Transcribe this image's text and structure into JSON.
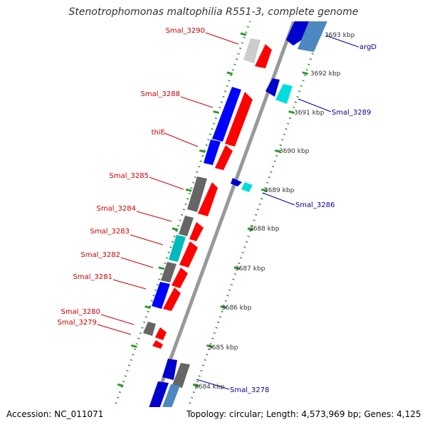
{
  "title": "Stenotrophomonas maltophilia R551-3, complete genome",
  "accession": "Accession: NC_011071",
  "summary": "Topology: circular; Length: 4,573,969 bp; Genes: 4,125",
  "colors": {
    "backbone": "#999999",
    "tick": "#339933",
    "label_forward": "#cc0000",
    "label_reverse": "#000099",
    "kbp_label": "#333333"
  },
  "kbp_labels": [
    "3693 kbp",
    "3692 kbp",
    "3691 kbp",
    "3690 kbp",
    "3689 kbp",
    "3688 kbp",
    "3687 kbp",
    "3686 kbp",
    "3685 kbp",
    "3684 kbp"
  ],
  "genes_left": [
    "Smal_3290",
    "Smal_3288",
    "thiE",
    "Smal_3285",
    "Smal_3284",
    "Smal_3283",
    "Smal_3282",
    "Smal_3281",
    "Smal_3280",
    "Smal_3279"
  ],
  "genes_right": [
    "argD",
    "Smal_3289",
    "Smal_3286",
    "Smal_3278"
  ]
}
